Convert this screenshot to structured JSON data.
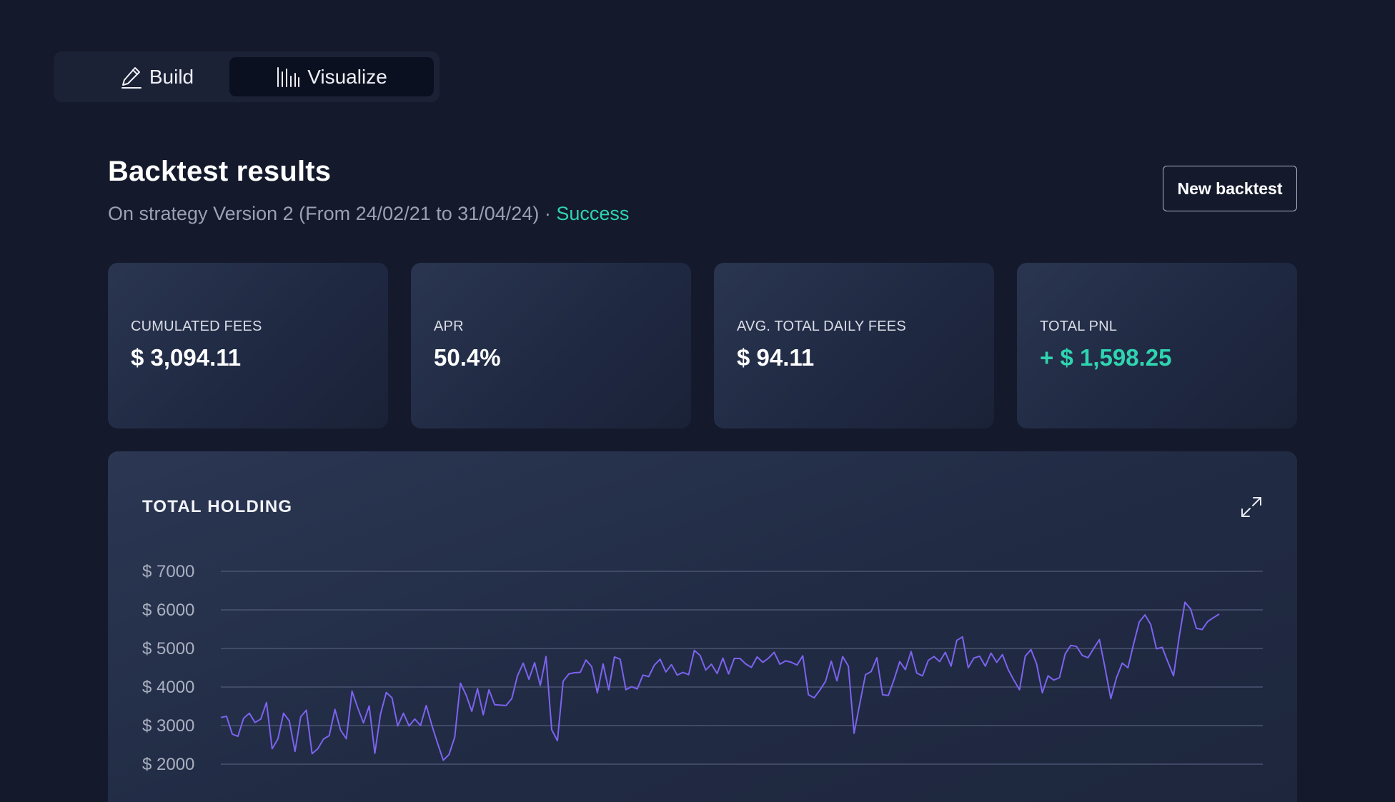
{
  "mode_toggle": {
    "build_label": "Build",
    "visualize_label": "Visualize",
    "active": "Visualize"
  },
  "header": {
    "title": "Backtest results",
    "subtitle_prefix": "On strategy Version 2 (From 24/02/21 to 31/04/24) · ",
    "status": "Success",
    "new_backtest_label": "New backtest"
  },
  "stats": [
    {
      "label": "CUMULATED FEES",
      "value": "$ 3,094.11"
    },
    {
      "label": "APR",
      "value": "50.4%"
    },
    {
      "label": "AVG. TOTAL DAILY FEES",
      "value": "$ 94.11"
    },
    {
      "label": "TOTAL PNL",
      "value": "+ $ 1,598.25"
    }
  ],
  "colors": {
    "background": "#141a2c",
    "accent_green": "#2fd4b0",
    "line": "#7c63f0",
    "grid": "#4a5470"
  },
  "chart": {
    "title": "TOTAL HOLDING",
    "expand_icon": "expand-icon"
  },
  "chart_data": {
    "type": "line",
    "title": "TOTAL HOLDING",
    "xlabel": "",
    "ylabel": "",
    "ylim": [
      2000,
      7000
    ],
    "yticks": [
      7000,
      6000,
      5000,
      4000,
      3000,
      2000
    ],
    "ytick_labels": [
      "$ 7000",
      "$ 6000",
      "$ 5000",
      "$ 4000",
      "$ 3000",
      "$ 2000"
    ],
    "grid": true,
    "series": [
      {
        "values": [
          3210,
          3240,
          2780,
          2720,
          3190,
          3320,
          3080,
          3170,
          3600,
          2400,
          2650,
          3320,
          3120,
          2330,
          3230,
          3400,
          2270,
          2400,
          2650,
          2740,
          3420,
          2880,
          2660,
          3890,
          3460,
          3070,
          3510,
          2280,
          3300,
          3860,
          3720,
          2990,
          3320,
          2990,
          3170,
          3000,
          3520,
          3000,
          2540,
          2100,
          2250,
          2700,
          4100,
          3790,
          3370,
          3960,
          3280,
          3930,
          3540,
          3530,
          3520,
          3700,
          4290,
          4620,
          4200,
          4630,
          4040,
          4790,
          2890,
          2610,
          4150,
          4340,
          4370,
          4380,
          4700,
          4530,
          3850,
          4600,
          3930,
          4780,
          4720,
          3930,
          4010,
          3950,
          4310,
          4270,
          4570,
          4720,
          4390,
          4580,
          4310,
          4380,
          4320,
          4950,
          4820,
          4440,
          4590,
          4350,
          4750,
          4340,
          4740,
          4740,
          4600,
          4510,
          4780,
          4640,
          4750,
          4900,
          4590,
          4680,
          4640,
          4570,
          4810,
          3800,
          3720,
          3920,
          4150,
          4670,
          4160,
          4790,
          4540,
          2800,
          3570,
          4320,
          4400,
          4760,
          3800,
          3780,
          4190,
          4660,
          4450,
          4920,
          4360,
          4290,
          4690,
          4790,
          4660,
          4900,
          4540,
          5210,
          5300,
          4500,
          4750,
          4800,
          4540,
          4880,
          4640,
          4840,
          4460,
          4180,
          3930,
          4800,
          4970,
          4600,
          3850,
          4290,
          4180,
          4240,
          4860,
          5080,
          5050,
          4820,
          4760,
          5000,
          5230,
          4490,
          3700,
          4240,
          4620,
          4500,
          5120,
          5690,
          5870,
          5620,
          4990,
          5030,
          4650,
          4290,
          5310,
          6200,
          6020,
          5520,
          5490,
          5700,
          5800,
          5890
        ]
      }
    ]
  }
}
